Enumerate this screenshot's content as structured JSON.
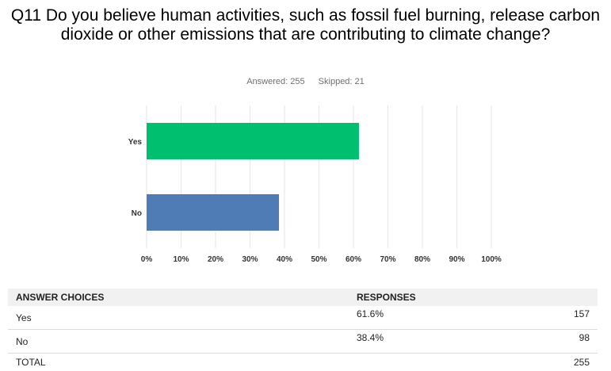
{
  "title": "Q11 Do you believe human activities, such as fossil fuel burning, release carbon dioxide or other emissions that are contributing to climate change?",
  "stats": {
    "answered": "Answered: 255",
    "skipped": "Skipped: 21"
  },
  "chart_data": {
    "type": "bar",
    "orientation": "horizontal",
    "categories": [
      "Yes",
      "No"
    ],
    "values": [
      61.6,
      38.4
    ],
    "colors": [
      "#00bf6f",
      "#507cb6"
    ],
    "xlim": [
      0,
      100
    ],
    "ticks": [
      "0%",
      "10%",
      "20%",
      "30%",
      "40%",
      "50%",
      "60%",
      "70%",
      "80%",
      "90%",
      "100%"
    ],
    "grid": true,
    "title": "",
    "xlabel": "",
    "ylabel": ""
  },
  "table": {
    "headers": {
      "answer": "ANSWER CHOICES",
      "responses": "RESPONSES"
    },
    "rows": [
      {
        "label": "Yes",
        "percent": "61.6%",
        "count": "157"
      },
      {
        "label": "No",
        "percent": "38.4%",
        "count": "98"
      }
    ],
    "total": {
      "label": "TOTAL",
      "count": "255"
    }
  }
}
